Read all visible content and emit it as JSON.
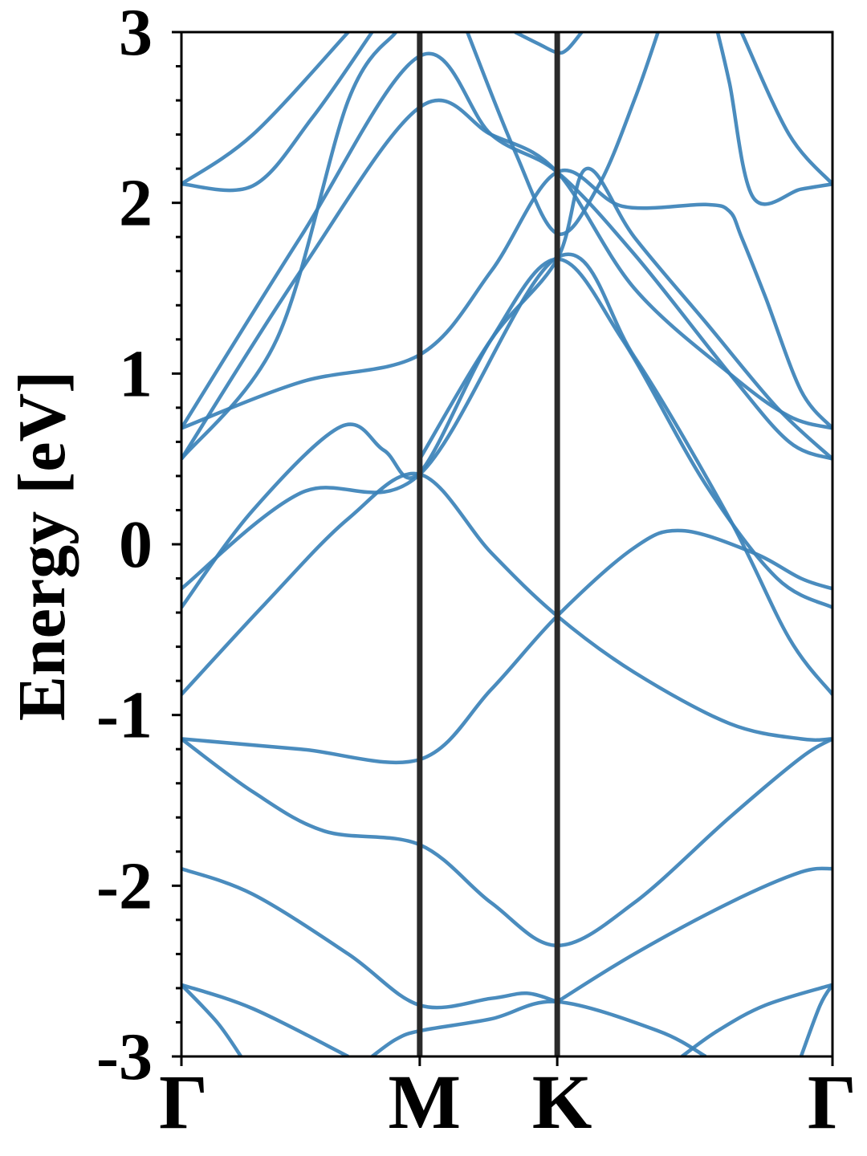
{
  "chart_data": {
    "type": "line",
    "title": "",
    "xlabel": "",
    "ylabel": "Energy [eV]",
    "ylim": [
      -3,
      3
    ],
    "grid": false,
    "legend": "none",
    "x_kpoint_labels": [
      "Γ",
      "M",
      "K",
      "Γ"
    ],
    "x_kpoint_positions": [
      0,
      1,
      1.577,
      2.732
    ],
    "y_ticks": [
      3,
      2,
      1,
      0,
      -1,
      -2,
      -3
    ],
    "y_tick_labels": [
      "3",
      "2",
      "1",
      "0",
      "-1",
      "-2",
      "-3"
    ],
    "colors": {
      "bands": "#3b82b9",
      "kpoint_lines": "#2a2a2a",
      "axes": "#000000"
    },
    "series": [
      {
        "values": [
          [
            0,
            -2.58
          ],
          [
            0.15,
            -2.8
          ],
          [
            0.25,
            -3.0
          ]
        ]
      },
      {
        "values": [
          [
            0,
            -2.58
          ],
          [
            0.3,
            -2.72
          ],
          [
            0.7,
            -3.0
          ]
        ]
      },
      {
        "values": [
          [
            0.8,
            -3.0
          ],
          [
            0.9,
            -2.9
          ],
          [
            1,
            -2.85
          ],
          [
            1.3,
            -2.78
          ],
          [
            1.577,
            -2.68
          ],
          [
            2.0,
            -2.85
          ],
          [
            2.2,
            -3.0
          ]
        ]
      },
      {
        "values": [
          [
            0,
            -1.9
          ],
          [
            0.3,
            -2.05
          ],
          [
            0.7,
            -2.4
          ],
          [
            1,
            -2.7
          ],
          [
            1.3,
            -2.66
          ],
          [
            1.45,
            -2.63
          ],
          [
            1.577,
            -2.68
          ]
        ]
      },
      {
        "values": [
          [
            1.577,
            -2.68
          ],
          [
            1.9,
            -2.4
          ],
          [
            2.3,
            -2.1
          ],
          [
            2.6,
            -1.92
          ],
          [
            2.732,
            -1.9
          ]
        ]
      },
      {
        "values": [
          [
            2.732,
            -2.58
          ],
          [
            2.45,
            -2.7
          ],
          [
            2.25,
            -2.85
          ],
          [
            2.1,
            -3.0
          ]
        ]
      },
      {
        "values": [
          [
            2.732,
            -2.58
          ],
          [
            2.68,
            -2.7
          ],
          [
            2.6,
            -3.0
          ]
        ]
      },
      {
        "values": [
          [
            0,
            -1.14
          ],
          [
            0.3,
            -1.45
          ],
          [
            0.6,
            -1.68
          ],
          [
            1,
            -1.76
          ],
          [
            1.3,
            -2.1
          ],
          [
            1.577,
            -2.35
          ],
          [
            1.9,
            -2.1
          ],
          [
            2.3,
            -1.6
          ],
          [
            2.6,
            -1.25
          ],
          [
            2.732,
            -1.14
          ]
        ]
      },
      {
        "values": [
          [
            0,
            -1.14
          ],
          [
            0.5,
            -1.2
          ],
          [
            1,
            -1.26
          ],
          [
            1.3,
            -0.85
          ],
          [
            1.577,
            -0.42
          ],
          [
            1.9,
            -0.02
          ],
          [
            2.1,
            0.08
          ],
          [
            2.4,
            -0.05
          ],
          [
            2.6,
            -0.2
          ],
          [
            2.732,
            -0.26
          ]
        ]
      },
      {
        "values": [
          [
            0,
            -0.88
          ],
          [
            0.35,
            -0.35
          ],
          [
            0.7,
            0.15
          ],
          [
            1,
            0.41
          ],
          [
            1.3,
            -0.05
          ],
          [
            1.577,
            -0.42
          ],
          [
            1.9,
            -0.75
          ],
          [
            2.3,
            -1.05
          ],
          [
            2.6,
            -1.14
          ],
          [
            2.732,
            -1.14
          ]
        ]
      },
      {
        "values": [
          [
            0,
            -0.37
          ],
          [
            0.3,
            0.2
          ],
          [
            0.67,
            0.69
          ],
          [
            0.85,
            0.55
          ],
          [
            1,
            0.42
          ],
          [
            1.3,
            1.2
          ],
          [
            1.577,
            1.67
          ],
          [
            1.85,
            1.2
          ],
          [
            2.2,
            0.35
          ],
          [
            2.5,
            -0.2
          ],
          [
            2.732,
            -0.37
          ]
        ]
      },
      {
        "values": [
          [
            0,
            -0.26
          ],
          [
            0.5,
            0.3
          ],
          [
            1,
            0.41
          ],
          [
            1.577,
            1.68
          ],
          [
            1.9,
            1.1
          ],
          [
            2.3,
            0.15
          ],
          [
            2.55,
            -0.55
          ],
          [
            2.732,
            -0.88
          ]
        ]
      },
      {
        "values": [
          [
            0,
            0.68
          ],
          [
            0.5,
            0.95
          ],
          [
            1,
            1.11
          ],
          [
            1.3,
            1.6
          ],
          [
            1.577,
            2.18
          ],
          [
            1.85,
            1.98
          ],
          [
            2.2,
            1.99
          ],
          [
            2.3,
            1.95
          ],
          [
            2.35,
            1.8
          ],
          [
            2.45,
            1.45
          ],
          [
            2.6,
            0.9
          ],
          [
            2.732,
            0.68
          ]
        ]
      },
      {
        "values": [
          [
            0,
            0.5
          ],
          [
            0.5,
            1.6
          ],
          [
            1,
            2.56
          ],
          [
            1.3,
            2.4
          ],
          [
            1.577,
            2.18
          ],
          [
            1.9,
            1.5
          ],
          [
            2.3,
            1.0
          ],
          [
            2.55,
            0.75
          ],
          [
            2.732,
            0.68
          ]
        ]
      },
      {
        "values": [
          [
            0,
            0.68
          ],
          [
            0.5,
            1.8
          ],
          [
            1,
            2.86
          ],
          [
            1.3,
            2.4
          ],
          [
            1.577,
            2.18
          ],
          [
            1.9,
            1.7
          ],
          [
            2.3,
            1.0
          ],
          [
            2.55,
            0.6
          ],
          [
            2.732,
            0.5
          ]
        ]
      },
      {
        "values": [
          [
            0,
            0.5
          ],
          [
            0.4,
            1.2
          ],
          [
            0.7,
            2.6
          ],
          [
            0.9,
            3.0
          ]
        ]
      },
      {
        "values": [
          [
            1,
            0.5
          ],
          [
            1.3,
            1.2
          ],
          [
            1.577,
            1.67
          ],
          [
            1.7,
            2.2
          ],
          [
            1.9,
            1.8
          ],
          [
            2.2,
            1.3
          ],
          [
            2.5,
            0.8
          ],
          [
            2.732,
            0.5
          ]
        ]
      },
      {
        "values": [
          [
            0,
            2.11
          ],
          [
            0.3,
            2.1
          ],
          [
            0.55,
            2.5
          ],
          [
            0.8,
            3.0
          ]
        ]
      },
      {
        "values": [
          [
            0,
            2.11
          ],
          [
            0.3,
            2.4
          ],
          [
            0.7,
            3.0
          ]
        ]
      },
      {
        "values": [
          [
            1.2,
            3.0
          ],
          [
            1.4,
            2.3
          ],
          [
            1.577,
            1.82
          ],
          [
            1.75,
            2.1
          ],
          [
            1.9,
            2.6
          ],
          [
            2.0,
            3.0
          ]
        ]
      },
      {
        "values": [
          [
            2.25,
            3.0
          ],
          [
            2.3,
            2.7
          ],
          [
            2.4,
            2.03
          ],
          [
            2.6,
            2.08
          ],
          [
            2.732,
            2.11
          ]
        ]
      },
      {
        "values": [
          [
            2.732,
            2.11
          ],
          [
            2.55,
            2.4
          ],
          [
            2.35,
            3.0
          ]
        ]
      },
      {
        "values": [
          [
            1.4,
            3.0
          ],
          [
            1.5,
            2.93
          ],
          [
            1.577,
            2.88
          ],
          [
            1.62,
            2.9
          ],
          [
            1.68,
            3.0
          ]
        ]
      }
    ]
  }
}
